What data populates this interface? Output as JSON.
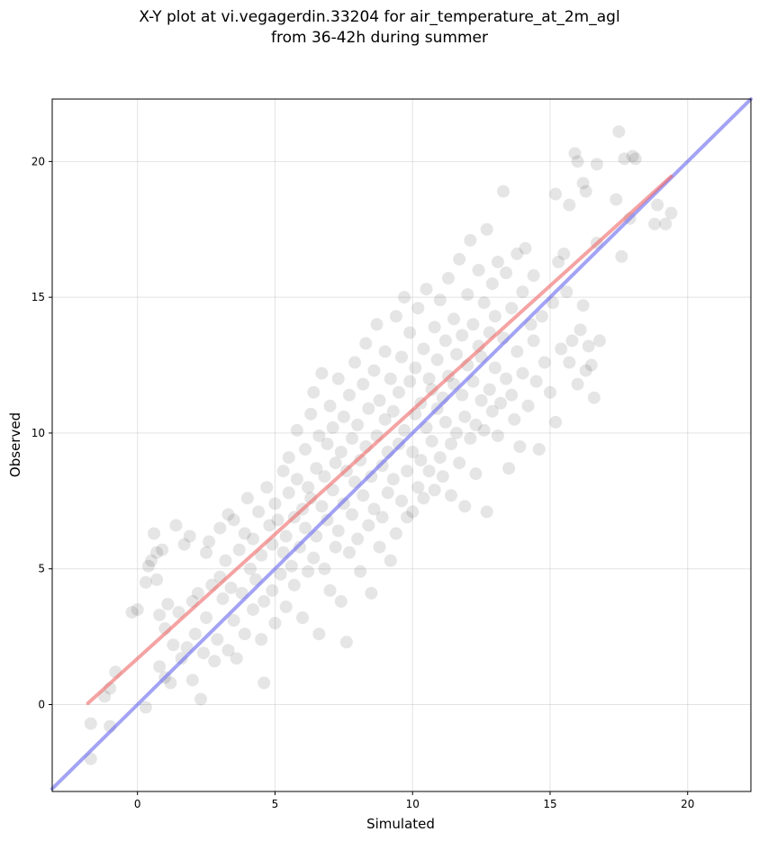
{
  "title_line1": "X-Y plot at vi.vegagerdin.33204 for air_temperature_at_2m_agl",
  "title_line2": "from 36-42h during summer",
  "chart_data": {
    "type": "scatter",
    "title": "X-Y plot at vi.vegagerdin.33204 for air_temperature_at_2m_agl from 36-42h during summer",
    "xlabel": "Simulated",
    "ylabel": "Observed",
    "xlim": [
      -3.1,
      22.3
    ],
    "ylim": [
      -3.2,
      22.3
    ],
    "xticks": [
      0,
      5,
      10,
      15,
      20
    ],
    "yticks": [
      0,
      5,
      10,
      15,
      20
    ],
    "grid": true,
    "point_color": "#000000",
    "point_alpha": 0.1,
    "series": [
      {
        "kind": "points",
        "points": [
          [
            -1.7,
            -0.7
          ],
          [
            -1.7,
            -2.0
          ],
          [
            -1.2,
            0.3
          ],
          [
            -1.0,
            0.6
          ],
          [
            -1.0,
            -0.8
          ],
          [
            -0.8,
            1.2
          ],
          [
            -0.2,
            3.4
          ],
          [
            0.0,
            3.5
          ],
          [
            0.3,
            -0.1
          ],
          [
            0.3,
            4.5
          ],
          [
            0.4,
            5.1
          ],
          [
            0.5,
            5.3
          ],
          [
            0.6,
            6.3
          ],
          [
            0.7,
            4.6
          ],
          [
            0.7,
            5.6
          ],
          [
            0.8,
            3.3
          ],
          [
            0.8,
            1.4
          ],
          [
            0.9,
            5.7
          ],
          [
            1.0,
            1.0
          ],
          [
            1.0,
            2.8
          ],
          [
            1.1,
            3.7
          ],
          [
            1.2,
            0.8
          ],
          [
            1.3,
            2.2
          ],
          [
            1.4,
            6.6
          ],
          [
            1.5,
            3.4
          ],
          [
            1.6,
            1.7
          ],
          [
            1.7,
            5.9
          ],
          [
            1.8,
            2.1
          ],
          [
            1.9,
            6.2
          ],
          [
            2.0,
            0.9
          ],
          [
            2.0,
            3.8
          ],
          [
            2.1,
            2.6
          ],
          [
            2.2,
            4.1
          ],
          [
            2.3,
            0.2
          ],
          [
            2.4,
            1.9
          ],
          [
            2.5,
            5.6
          ],
          [
            2.5,
            3.2
          ],
          [
            2.6,
            6.0
          ],
          [
            2.7,
            4.4
          ],
          [
            2.8,
            1.6
          ],
          [
            2.9,
            2.4
          ],
          [
            3.0,
            4.7
          ],
          [
            3.0,
            6.5
          ],
          [
            3.1,
            3.9
          ],
          [
            3.2,
            5.3
          ],
          [
            3.3,
            7.0
          ],
          [
            3.3,
            2.0
          ],
          [
            3.4,
            4.3
          ],
          [
            3.5,
            6.8
          ],
          [
            3.5,
            3.1
          ],
          [
            3.6,
            1.7
          ],
          [
            3.7,
            5.7
          ],
          [
            3.8,
            4.1
          ],
          [
            3.9,
            6.3
          ],
          [
            3.9,
            2.6
          ],
          [
            4.0,
            7.6
          ],
          [
            4.1,
            5.0
          ],
          [
            4.2,
            3.5
          ],
          [
            4.2,
            6.1
          ],
          [
            4.3,
            4.6
          ],
          [
            4.4,
            7.1
          ],
          [
            4.5,
            2.4
          ],
          [
            4.5,
            5.5
          ],
          [
            4.6,
            3.8
          ],
          [
            4.6,
            0.8
          ],
          [
            4.7,
            8.0
          ],
          [
            4.8,
            6.6
          ],
          [
            4.9,
            4.2
          ],
          [
            4.9,
            5.9
          ],
          [
            5.0,
            7.4
          ],
          [
            5.0,
            3.0
          ],
          [
            5.1,
            6.8
          ],
          [
            5.2,
            4.8
          ],
          [
            5.3,
            8.6
          ],
          [
            5.3,
            5.6
          ],
          [
            5.4,
            6.2
          ],
          [
            5.4,
            3.6
          ],
          [
            5.5,
            7.8
          ],
          [
            5.5,
            9.1
          ],
          [
            5.6,
            5.1
          ],
          [
            5.7,
            6.9
          ],
          [
            5.7,
            4.4
          ],
          [
            5.8,
            8.3
          ],
          [
            5.8,
            10.1
          ],
          [
            5.9,
            5.8
          ],
          [
            6.0,
            7.2
          ],
          [
            6.0,
            3.2
          ],
          [
            6.1,
            9.4
          ],
          [
            6.1,
            6.5
          ],
          [
            6.2,
            8.0
          ],
          [
            6.2,
            4.9
          ],
          [
            6.3,
            10.7
          ],
          [
            6.3,
            7.6
          ],
          [
            6.4,
            5.4
          ],
          [
            6.4,
            11.5
          ],
          [
            6.5,
            8.7
          ],
          [
            6.5,
            6.2
          ],
          [
            6.6,
            9.9
          ],
          [
            6.6,
            2.6
          ],
          [
            6.7,
            7.3
          ],
          [
            6.7,
            12.2
          ],
          [
            6.8,
            5.0
          ],
          [
            6.8,
            8.4
          ],
          [
            6.9,
            9.6
          ],
          [
            6.9,
            6.8
          ],
          [
            7.0,
            11.0
          ],
          [
            7.0,
            4.2
          ],
          [
            7.1,
            7.9
          ],
          [
            7.1,
            10.2
          ],
          [
            7.2,
            5.8
          ],
          [
            7.2,
            8.9
          ],
          [
            7.3,
            12.0
          ],
          [
            7.3,
            6.4
          ],
          [
            7.4,
            9.3
          ],
          [
            7.4,
            3.8
          ],
          [
            7.5,
            10.6
          ],
          [
            7.5,
            7.4
          ],
          [
            7.6,
            2.3
          ],
          [
            7.6,
            8.6
          ],
          [
            7.7,
            11.4
          ],
          [
            7.7,
            5.6
          ],
          [
            7.8,
            9.8
          ],
          [
            7.8,
            7.0
          ],
          [
            7.9,
            12.6
          ],
          [
            7.9,
            8.2
          ],
          [
            8.0,
            10.3
          ],
          [
            8.0,
            6.1
          ],
          [
            8.1,
            9.0
          ],
          [
            8.1,
            4.9
          ],
          [
            8.2,
            11.8
          ],
          [
            8.2,
            7.7
          ],
          [
            8.3,
            13.3
          ],
          [
            8.3,
            9.5
          ],
          [
            8.4,
            6.6
          ],
          [
            8.4,
            10.9
          ],
          [
            8.5,
            8.4
          ],
          [
            8.5,
            4.1
          ],
          [
            8.6,
            12.3
          ],
          [
            8.6,
            7.2
          ],
          [
            8.7,
            9.9
          ],
          [
            8.7,
            14.0
          ],
          [
            8.8,
            5.8
          ],
          [
            8.8,
            11.2
          ],
          [
            8.9,
            8.8
          ],
          [
            8.9,
            6.9
          ],
          [
            9.0,
            10.5
          ],
          [
            9.0,
            13.0
          ],
          [
            9.1,
            7.8
          ],
          [
            9.1,
            9.3
          ],
          [
            9.2,
            12.0
          ],
          [
            9.2,
            5.3
          ],
          [
            9.3,
            10.8
          ],
          [
            9.3,
            8.3
          ],
          [
            9.4,
            14.3
          ],
          [
            9.4,
            6.3
          ],
          [
            9.5,
            11.5
          ],
          [
            9.5,
            9.6
          ],
          [
            9.6,
            7.5
          ],
          [
            9.6,
            12.8
          ],
          [
            9.7,
            10.1
          ],
          [
            9.7,
            15.0
          ],
          [
            9.8,
            8.6
          ],
          [
            9.8,
            6.9
          ],
          [
            9.9,
            11.9
          ],
          [
            9.9,
            13.7
          ],
          [
            10.0,
            9.3
          ],
          [
            10.0,
            7.1
          ],
          [
            10.1,
            10.7
          ],
          [
            10.1,
            12.4
          ],
          [
            10.2,
            8.0
          ],
          [
            10.2,
            14.6
          ],
          [
            10.3,
            11.1
          ],
          [
            10.3,
            9.0
          ],
          [
            10.4,
            13.1
          ],
          [
            10.4,
            7.6
          ],
          [
            10.5,
            10.2
          ],
          [
            10.5,
            15.3
          ],
          [
            10.6,
            12.0
          ],
          [
            10.6,
            8.6
          ],
          [
            10.7,
            11.6
          ],
          [
            10.7,
            9.7
          ],
          [
            10.8,
            13.9
          ],
          [
            10.8,
            7.9
          ],
          [
            10.9,
            10.9
          ],
          [
            10.9,
            12.7
          ],
          [
            11.0,
            9.1
          ],
          [
            11.0,
            14.9
          ],
          [
            11.1,
            11.3
          ],
          [
            11.1,
            8.4
          ],
          [
            11.2,
            13.4
          ],
          [
            11.2,
            10.4
          ],
          [
            11.3,
            12.1
          ],
          [
            11.3,
            15.7
          ],
          [
            11.4,
            9.6
          ],
          [
            11.4,
            7.7
          ],
          [
            11.5,
            11.8
          ],
          [
            11.5,
            14.2
          ],
          [
            11.6,
            10.0
          ],
          [
            11.6,
            12.9
          ],
          [
            11.7,
            8.9
          ],
          [
            11.7,
            16.4
          ],
          [
            11.8,
            11.4
          ],
          [
            11.8,
            13.6
          ],
          [
            11.9,
            10.6
          ],
          [
            11.9,
            7.3
          ],
          [
            12.0,
            12.5
          ],
          [
            12.0,
            15.1
          ],
          [
            12.1,
            9.8
          ],
          [
            12.1,
            17.1
          ],
          [
            12.2,
            11.9
          ],
          [
            12.2,
            14.0
          ],
          [
            12.3,
            10.3
          ],
          [
            12.3,
            8.5
          ],
          [
            12.4,
            13.2
          ],
          [
            12.4,
            16.0
          ],
          [
            12.5,
            11.2
          ],
          [
            12.5,
            12.8
          ],
          [
            12.6,
            10.1
          ],
          [
            12.6,
            14.8
          ],
          [
            12.7,
            17.5
          ],
          [
            12.7,
            7.1
          ],
          [
            12.8,
            13.7
          ],
          [
            12.8,
            11.6
          ],
          [
            12.9,
            15.5
          ],
          [
            12.9,
            10.8
          ],
          [
            13.0,
            12.4
          ],
          [
            13.0,
            14.3
          ],
          [
            13.1,
            9.9
          ],
          [
            13.1,
            16.3
          ],
          [
            13.2,
            11.1
          ],
          [
            13.3,
            18.9
          ],
          [
            13.3,
            13.5
          ],
          [
            13.4,
            12.0
          ],
          [
            13.4,
            15.9
          ],
          [
            13.5,
            8.7
          ],
          [
            13.6,
            14.6
          ],
          [
            13.6,
            11.4
          ],
          [
            13.7,
            10.5
          ],
          [
            13.8,
            16.6
          ],
          [
            13.8,
            13.0
          ],
          [
            13.9,
            9.5
          ],
          [
            14.0,
            15.2
          ],
          [
            14.0,
            12.2
          ],
          [
            14.1,
            16.8
          ],
          [
            14.2,
            11.0
          ],
          [
            14.3,
            14.0
          ],
          [
            14.4,
            13.4
          ],
          [
            14.4,
            15.8
          ],
          [
            14.5,
            11.9
          ],
          [
            14.6,
            9.4
          ],
          [
            14.7,
            14.3
          ],
          [
            14.8,
            12.6
          ],
          [
            15.0,
            11.5
          ],
          [
            15.1,
            14.8
          ],
          [
            15.2,
            10.4
          ],
          [
            15.2,
            18.8
          ],
          [
            15.3,
            16.3
          ],
          [
            15.4,
            13.1
          ],
          [
            15.5,
            16.6
          ],
          [
            15.6,
            15.2
          ],
          [
            15.7,
            12.6
          ],
          [
            15.7,
            18.4
          ],
          [
            15.8,
            13.4
          ],
          [
            15.9,
            20.3
          ],
          [
            16.0,
            20.0
          ],
          [
            16.0,
            11.8
          ],
          [
            16.1,
            13.8
          ],
          [
            16.2,
            19.2
          ],
          [
            16.2,
            14.7
          ],
          [
            16.3,
            18.9
          ],
          [
            16.3,
            12.3
          ],
          [
            16.4,
            13.2
          ],
          [
            16.5,
            12.5
          ],
          [
            16.6,
            11.3
          ],
          [
            16.7,
            19.9
          ],
          [
            16.7,
            17.0
          ],
          [
            16.8,
            13.4
          ],
          [
            17.4,
            18.6
          ],
          [
            17.5,
            21.1
          ],
          [
            17.6,
            16.5
          ],
          [
            17.7,
            20.1
          ],
          [
            17.9,
            17.9
          ],
          [
            18.0,
            20.2
          ],
          [
            18.1,
            20.1
          ],
          [
            18.8,
            17.7
          ],
          [
            18.9,
            18.4
          ],
          [
            19.2,
            17.7
          ],
          [
            19.4,
            18.1
          ]
        ]
      },
      {
        "kind": "line",
        "points": [
          [
            -3.1,
            -3.1
          ],
          [
            22.3,
            22.3
          ]
        ],
        "color": "#6666ee"
      },
      {
        "kind": "line",
        "points": [
          [
            -1.8,
            0.05
          ],
          [
            19.4,
            19.45
          ]
        ],
        "color": "#ee6666"
      }
    ]
  }
}
